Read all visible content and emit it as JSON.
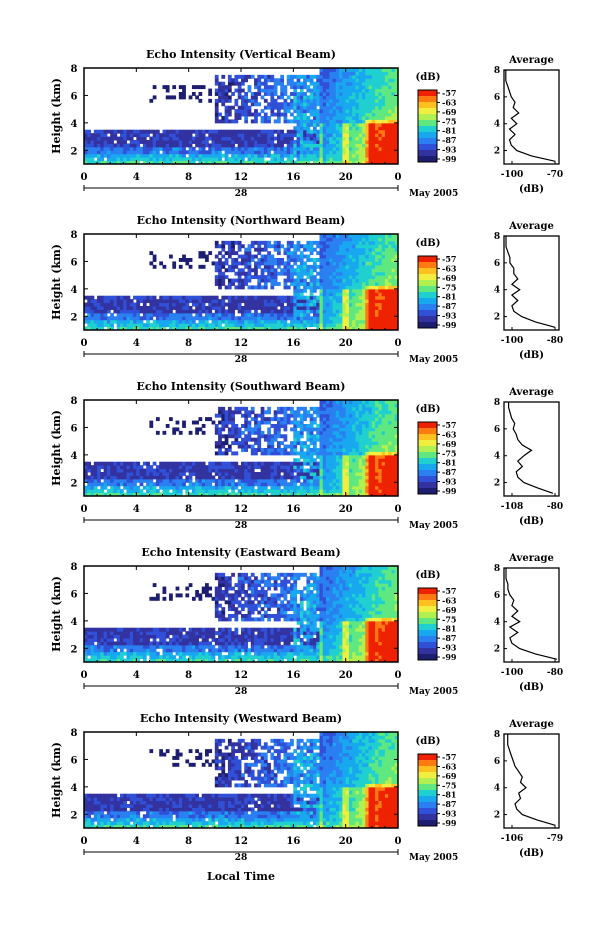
{
  "colorbar": {
    "unit": "(dB)",
    "ticks": [
      "-57",
      "-63",
      "-69",
      "-75",
      "-81",
      "-87",
      "-93",
      "-99"
    ],
    "colors": [
      "#ee2200",
      "#ff7a10",
      "#ffc020",
      "#f0ee40",
      "#b0f050",
      "#60e880",
      "#20d0d0",
      "#18a8f0",
      "#2a80f0",
      "#3050d8",
      "#3232a0",
      "#1e1e70"
    ]
  },
  "shared": {
    "x_ticks": [
      "0",
      "4",
      "8",
      "12",
      "16",
      "20",
      "0"
    ],
    "day_label": "28",
    "month_label": "May 2005",
    "xlabel": "Local Time",
    "ylabel": "Height (km)",
    "y_ticks": [
      "8",
      "6",
      "4",
      "2"
    ],
    "avg_title": "Average",
    "avg_xlabel": "(dB)"
  },
  "chart_data": [
    {
      "type": "heatmap",
      "title": "Echo Intensity (Vertical Beam)",
      "xlim": [
        0,
        24
      ],
      "ylim": [
        1,
        8
      ],
      "avg_profile": {
        "title": "Average",
        "xlabel": "(dB)",
        "x_ticks": [
          "-100",
          "-70"
        ],
        "xlim": [
          -100,
          -70
        ],
        "y_ticks": [
          "8",
          "6",
          "4",
          "2"
        ],
        "ylim": [
          1,
          8
        ],
        "heights": [
          1.2,
          1.6,
          2.0,
          2.4,
          2.8,
          3.2,
          3.6,
          4.0,
          4.4,
          4.8,
          5.2,
          5.6,
          6.0,
          6.4,
          6.8,
          7.2,
          7.6,
          8.0
        ],
        "values": [
          -72,
          -85,
          -93,
          -96,
          -97,
          -94,
          -97,
          -93,
          -96,
          -92,
          -95,
          -94,
          -96,
          -97,
          -98,
          -99,
          -99,
          -99
        ]
      }
    },
    {
      "type": "heatmap",
      "title": "Echo Intensity (Northward Beam)",
      "xlim": [
        0,
        24
      ],
      "ylim": [
        1,
        8
      ],
      "avg_profile": {
        "title": "Average",
        "xlabel": "(dB)",
        "x_ticks": [
          "-100",
          "-80"
        ],
        "xlim": [
          -100,
          -72
        ],
        "y_ticks": [
          "8",
          "6",
          "4",
          "2"
        ],
        "ylim": [
          1,
          8
        ],
        "heights": [
          1.2,
          1.6,
          2.0,
          2.4,
          2.8,
          3.2,
          3.6,
          4.0,
          4.4,
          4.8,
          5.2,
          5.6,
          6.0,
          6.4,
          6.8,
          7.2,
          7.6,
          8.0
        ],
        "values": [
          -74,
          -84,
          -91,
          -95,
          -96,
          -93,
          -96,
          -92,
          -96,
          -93,
          -95,
          -95,
          -97,
          -97,
          -98,
          -99,
          -99,
          -99
        ]
      }
    },
    {
      "type": "heatmap",
      "title": "Echo Intensity (Southward Beam)",
      "xlim": [
        0,
        24
      ],
      "ylim": [
        1,
        8
      ],
      "avg_profile": {
        "title": "Average",
        "xlabel": "(dB)",
        "x_ticks": [
          "-108",
          "-80"
        ],
        "xlim": [
          -108,
          -72
        ],
        "y_ticks": [
          "8",
          "6",
          "4",
          "2"
        ],
        "ylim": [
          1,
          8
        ],
        "heights": [
          1.2,
          1.6,
          2.0,
          2.4,
          2.8,
          3.2,
          3.6,
          4.0,
          4.4,
          4.8,
          5.2,
          5.6,
          6.0,
          6.4,
          6.8,
          7.2,
          7.6,
          8.0
        ],
        "values": [
          -76,
          -86,
          -95,
          -99,
          -100,
          -96,
          -99,
          -95,
          -90,
          -96,
          -99,
          -100,
          -102,
          -101,
          -103,
          -104,
          -105,
          -105
        ]
      }
    },
    {
      "type": "heatmap",
      "title": "Echo Intensity (Eastward Beam)",
      "xlim": [
        0,
        24
      ],
      "ylim": [
        1,
        8
      ],
      "avg_profile": {
        "title": "Average",
        "xlabel": "(dB)",
        "x_ticks": [
          "-100",
          "-80"
        ],
        "xlim": [
          -100,
          -72
        ],
        "y_ticks": [
          "8",
          "6",
          "4",
          "2"
        ],
        "ylim": [
          1,
          8
        ],
        "heights": [
          1.2,
          1.6,
          2.0,
          2.4,
          2.8,
          3.2,
          3.6,
          4.0,
          4.4,
          4.8,
          5.2,
          5.6,
          6.0,
          6.4,
          6.8,
          7.2,
          7.6,
          8.0
        ],
        "values": [
          -73,
          -84,
          -92,
          -96,
          -97,
          -93,
          -97,
          -92,
          -96,
          -93,
          -96,
          -95,
          -97,
          -98,
          -98,
          -99,
          -99,
          -99
        ]
      }
    },
    {
      "type": "heatmap",
      "title": "Echo Intensity (Westward Beam)",
      "xlim": [
        0,
        24
      ],
      "ylim": [
        1,
        8
      ],
      "avg_profile": {
        "title": "Average",
        "xlabel": "(dB)",
        "x_ticks": [
          "-106",
          "-79"
        ],
        "xlim": [
          -106,
          -76
        ],
        "y_ticks": [
          "8",
          "6",
          "4",
          "2"
        ],
        "ylim": [
          1,
          8
        ],
        "heights": [
          1.2,
          1.6,
          2.0,
          2.4,
          2.8,
          3.2,
          3.6,
          4.0,
          4.4,
          4.8,
          5.2,
          5.6,
          6.0,
          6.4,
          6.8,
          7.2,
          7.6,
          8.0
        ],
        "values": [
          -78,
          -88,
          -96,
          -99,
          -100,
          -97,
          -98,
          -94,
          -97,
          -96,
          -98,
          -100,
          -101,
          -102,
          -103,
          -104,
          -104,
          -104
        ]
      }
    }
  ]
}
